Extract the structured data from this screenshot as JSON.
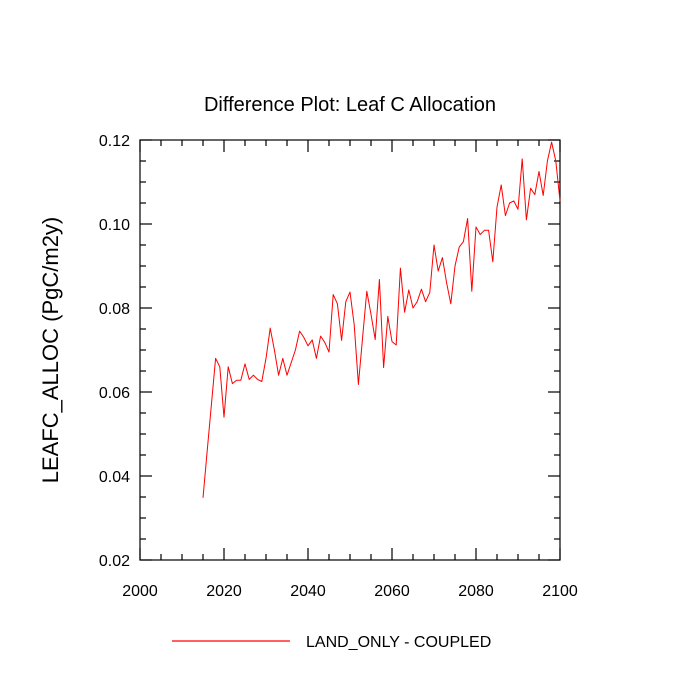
{
  "chart_data": {
    "type": "line",
    "title": "Difference Plot: Leaf C Allocation",
    "xlabel": "",
    "ylabel": "LEAFC_ALLOC  (PgC/m2y)",
    "xlim": [
      2000,
      2100
    ],
    "ylim": [
      0.02,
      0.12
    ],
    "x_ticks": [
      2000,
      2020,
      2040,
      2060,
      2080,
      2100
    ],
    "x_tick_labels": [
      "2000",
      "2020",
      "2040",
      "2060",
      "2080",
      "2100"
    ],
    "y_ticks": [
      0.02,
      0.04,
      0.06,
      0.08,
      0.1,
      0.12
    ],
    "y_tick_labels": [
      "0.02",
      "0.04",
      "0.06",
      "0.08",
      "0.10",
      "0.12"
    ],
    "x_minor_step": 5,
    "y_minor_step": 0.005,
    "grid": false,
    "legend_position": "bottom-center",
    "series": [
      {
        "name": "LAND_ONLY - COUPLED",
        "color": "#ff0000",
        "x": [
          2015,
          2016,
          2017,
          2018,
          2019,
          2020,
          2021,
          2022,
          2023,
          2024,
          2025,
          2026,
          2027,
          2028,
          2029,
          2030,
          2031,
          2032,
          2033,
          2034,
          2035,
          2036,
          2037,
          2038,
          2039,
          2040,
          2041,
          2042,
          2043,
          2044,
          2045,
          2046,
          2047,
          2048,
          2049,
          2050,
          2051,
          2052,
          2053,
          2054,
          2055,
          2056,
          2057,
          2058,
          2059,
          2060,
          2061,
          2062,
          2063,
          2064,
          2065,
          2066,
          2067,
          2068,
          2069,
          2070,
          2071,
          2072,
          2073,
          2074,
          2075,
          2076,
          2077,
          2078,
          2079,
          2080,
          2081,
          2082,
          2083,
          2084,
          2085,
          2086,
          2087,
          2088,
          2089,
          2090,
          2091,
          2092,
          2093,
          2094,
          2095,
          2096,
          2097,
          2098,
          2099,
          2100
        ],
        "values": [
          0.0348,
          0.046,
          0.057,
          0.068,
          0.066,
          0.054,
          0.066,
          0.062,
          0.0628,
          0.0628,
          0.0667,
          0.063,
          0.064,
          0.063,
          0.0625,
          0.068,
          0.0752,
          0.07,
          0.064,
          0.068,
          0.064,
          0.067,
          0.07,
          0.0745,
          0.073,
          0.071,
          0.0724,
          0.068,
          0.0733,
          0.0718,
          0.0695,
          0.0832,
          0.081,
          0.0723,
          0.0815,
          0.0838,
          0.076,
          0.0618,
          0.073,
          0.084,
          0.0785,
          0.0725,
          0.0868,
          0.0658,
          0.078,
          0.072,
          0.0712,
          0.0895,
          0.079,
          0.0843,
          0.08,
          0.0815,
          0.0845,
          0.0815,
          0.0837,
          0.095,
          0.0888,
          0.092,
          0.086,
          0.081,
          0.09,
          0.0945,
          0.0958,
          0.1013,
          0.084,
          0.0993,
          0.0975,
          0.0985,
          0.0985,
          0.091,
          0.104,
          0.1093,
          0.102,
          0.105,
          0.1055,
          0.1035,
          0.1155,
          0.101,
          0.1085,
          0.107,
          0.1125,
          0.1068,
          0.115,
          0.1195,
          0.115,
          0.1055
        ]
      }
    ]
  }
}
